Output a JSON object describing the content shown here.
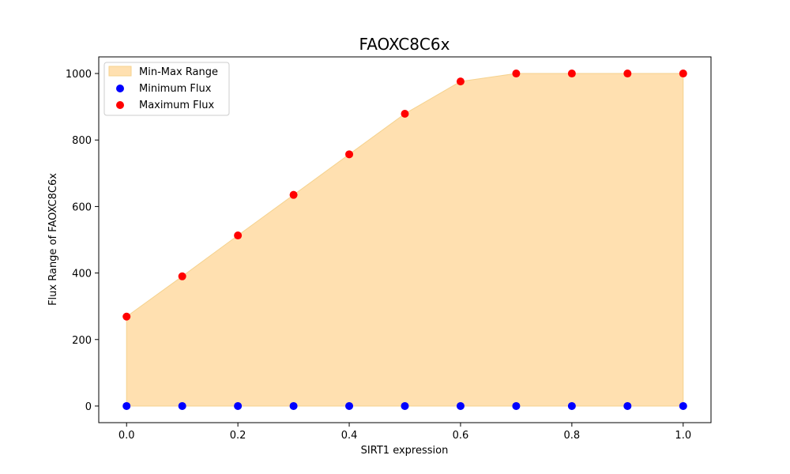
{
  "chart_data": {
    "type": "scatter",
    "title": "FAOXC8C6x",
    "xlabel": "SIRT1 expression",
    "ylabel": "Flux Range of FAOXC8C6x",
    "xlim": [
      -0.05,
      1.05
    ],
    "ylim": [
      -50,
      1050
    ],
    "xticks": [
      0.0,
      0.2,
      0.4,
      0.6,
      0.8,
      1.0
    ],
    "xtick_labels": [
      "0.0",
      "0.2",
      "0.4",
      "0.6",
      "0.8",
      "1.0"
    ],
    "yticks": [
      0,
      200,
      400,
      600,
      800,
      1000
    ],
    "ytick_labels": [
      "0",
      "200",
      "400",
      "600",
      "800",
      "1000"
    ],
    "x": [
      0.0,
      0.1,
      0.2,
      0.3,
      0.4,
      0.5,
      0.6,
      0.7,
      0.8,
      0.9,
      1.0
    ],
    "fill": {
      "name": "Min-Max Range",
      "color": "#ffe0b0",
      "edge_color": "#f5d28e"
    },
    "series": [
      {
        "name": "Minimum Flux",
        "color": "#0000ff",
        "values": [
          0,
          0,
          0,
          0,
          0,
          0,
          0,
          0,
          0,
          0,
          0
        ]
      },
      {
        "name": "Maximum Flux",
        "color": "#ff0000",
        "values": [
          269,
          390,
          513,
          635,
          757,
          879,
          976,
          1000,
          1000,
          1000,
          1000
        ]
      }
    ],
    "legend_position": "upper-left",
    "grid": false
  }
}
